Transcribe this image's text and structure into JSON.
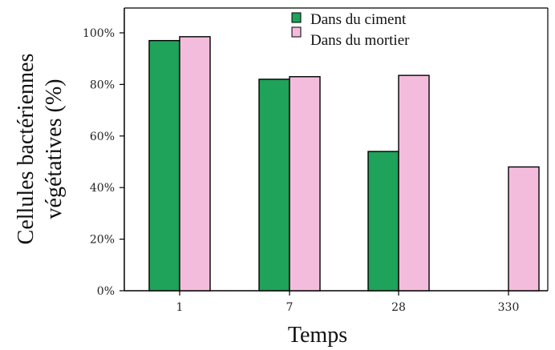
{
  "chart_data": {
    "type": "bar",
    "categories": [
      "1",
      "7",
      "28",
      "330"
    ],
    "series": [
      {
        "name": "Dans du ciment",
        "values": [
          97,
          82,
          54,
          null
        ],
        "color": "#1fa25a"
      },
      {
        "name": "Dans du mortier",
        "values": [
          98.5,
          83,
          83.5,
          48
        ],
        "color": "#f4bcdc"
      }
    ],
    "xlabel": "Temps",
    "ylabel": [
      "Cellules bactériennes",
      "végétatives (%)"
    ],
    "ylim": [
      0,
      100
    ],
    "yticks": [
      0,
      20,
      40,
      60,
      80,
      100
    ],
    "ytick_labels": [
      "0%",
      "20%",
      "40%",
      "60%",
      "80%",
      "100%"
    ],
    "grid": false,
    "legend_position": "top-center"
  }
}
